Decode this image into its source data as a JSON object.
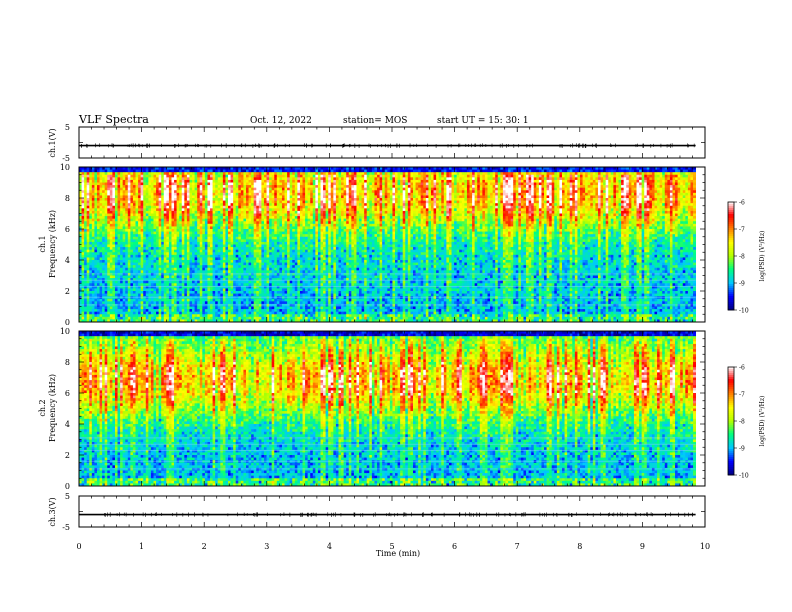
{
  "header": {
    "title": "VLF Spectra",
    "date": "Oct. 12, 2022",
    "station": "station= MOS",
    "start": "start  UT =   15: 30: 1"
  },
  "chart_data": [
    {
      "type": "line",
      "name_label": "ch.1(V)",
      "ylabel": "ch.1(V)",
      "ylim": [
        -5,
        5
      ],
      "yticks": [
        "5",
        "-5"
      ],
      "description_value": -1,
      "x_range_min": [
        0,
        9.85
      ],
      "trace_level": -1
    },
    {
      "type": "heatmap",
      "ylabel_line1": "ch.1",
      "ylabel_line2": "Frequency (kHz)",
      "ylim": [
        0,
        10
      ],
      "yticks": [
        "0",
        "2",
        "4",
        "6",
        "8",
        "10"
      ],
      "x_range_min": [
        0,
        9.85
      ],
      "dominant_band_khz": [
        7,
        9.5
      ],
      "colorbar": {
        "label": "log(PSD) (V²/Hz)",
        "range": [
          -10,
          -6
        ],
        "ticks": [
          "-6",
          "-7",
          "-8",
          "-9",
          "-10"
        ],
        "colors": [
          "#000080",
          "#0000ff",
          "#00c8ff",
          "#00ff80",
          "#b4ff00",
          "#ffff00",
          "#ff8000",
          "#ff0000",
          "#ffffff"
        ]
      }
    },
    {
      "type": "heatmap",
      "ylabel_line1": "ch.2",
      "ylabel_line2": "Frequency (kHz)",
      "ylim": [
        0,
        10
      ],
      "yticks": [
        "0",
        "2",
        "4",
        "6",
        "8",
        "10"
      ],
      "x_range_min": [
        0,
        9.85
      ],
      "dominant_band_khz": [
        5.5,
        8
      ],
      "colorbar": {
        "label": "log(PSD) (V²/Hz)",
        "range": [
          -10,
          -6
        ],
        "ticks": [
          "-6",
          "-7",
          "-8",
          "-9",
          "-10"
        ],
        "colors": [
          "#000080",
          "#0000ff",
          "#00c8ff",
          "#00ff80",
          "#b4ff00",
          "#ffff00",
          "#ff8000",
          "#ff0000",
          "#ffffff"
        ]
      }
    },
    {
      "type": "line",
      "ylabel": "ch.3(V)",
      "ylim": [
        -5,
        5
      ],
      "yticks": [
        "5",
        "-5"
      ],
      "x_range_min": [
        0,
        9.85
      ],
      "trace_level": -1
    }
  ],
  "xaxis": {
    "label": "Time (min)",
    "ticks": [
      "0",
      "1",
      "2",
      "3",
      "4",
      "5",
      "6",
      "7",
      "8",
      "9",
      "10"
    ],
    "range": [
      0,
      10
    ]
  }
}
